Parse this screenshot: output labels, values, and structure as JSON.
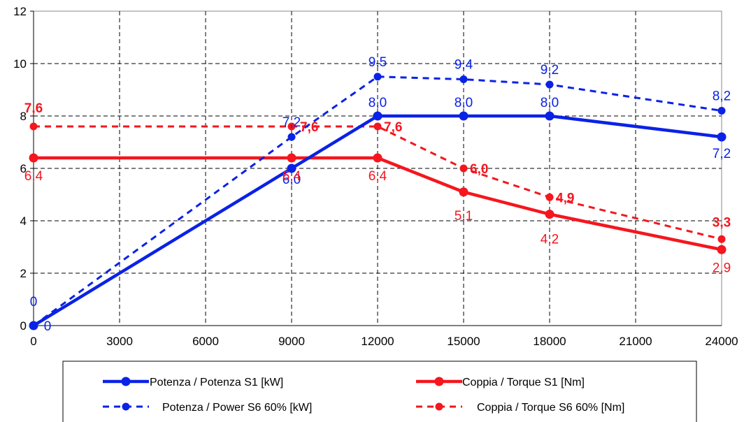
{
  "colors": {
    "potenza": "#0A22E6",
    "coppia": "#F5161E"
  },
  "chart_data": {
    "type": "line",
    "title": "",
    "xlabel": "",
    "ylabel": "",
    "xlim": [
      0,
      24000
    ],
    "ylim": [
      0,
      12
    ],
    "xticks": [
      "0",
      "3000",
      "6000",
      "9000",
      "12000",
      "15000",
      "18000",
      "21000",
      "24000"
    ],
    "yticks": [
      "0",
      "2",
      "4",
      "6",
      "8",
      "10",
      "12"
    ],
    "grid": true,
    "legend_position": "bottom",
    "series": [
      {
        "name": "Potenza / Potenza S1 [kW]",
        "color": "#0A22E6",
        "style": "solid",
        "bold_labels": false,
        "x": [
          0,
          9000,
          12000,
          15000,
          18000,
          24000
        ],
        "y": [
          0,
          6.0,
          8.0,
          8.0,
          8.0,
          7.2
        ],
        "labels": [
          "0",
          "6,0",
          "8,0",
          "8,0",
          "8,0",
          "7,2"
        ]
      },
      {
        "name": "Potenza / Power S6 60% [kW]",
        "color": "#0A22E6",
        "style": "dashed",
        "bold_labels": false,
        "x": [
          0,
          9000,
          12000,
          15000,
          18000,
          24000
        ],
        "y": [
          0,
          7.2,
          9.5,
          9.4,
          9.2,
          8.2
        ],
        "labels": [
          "0",
          "7,2",
          "9,5",
          "9,4",
          "9,2",
          "8,2"
        ]
      },
      {
        "name": "Coppia / Torque S1 [Nm]",
        "color": "#F5161E",
        "style": "solid",
        "bold_labels": false,
        "x": [
          0,
          9000,
          12000,
          15000,
          18000,
          24000
        ],
        "y": [
          6.4,
          6.4,
          6.4,
          5.1,
          4.25,
          2.9
        ],
        "labels": [
          "6,4",
          "6,4",
          "6,4",
          "5,1",
          "4,2",
          "2,9"
        ]
      },
      {
        "name": "Coppia / Torque S6 60% [Nm]",
        "color": "#F5161E",
        "style": "dashed",
        "bold_labels": true,
        "x": [
          0,
          9000,
          12000,
          15000,
          18000,
          24000
        ],
        "y": [
          7.6,
          7.6,
          7.6,
          6.0,
          4.9,
          3.3
        ],
        "labels": [
          "7,6",
          "7,6",
          "7,6",
          "6,0",
          "4,9",
          "3,3"
        ]
      }
    ]
  }
}
